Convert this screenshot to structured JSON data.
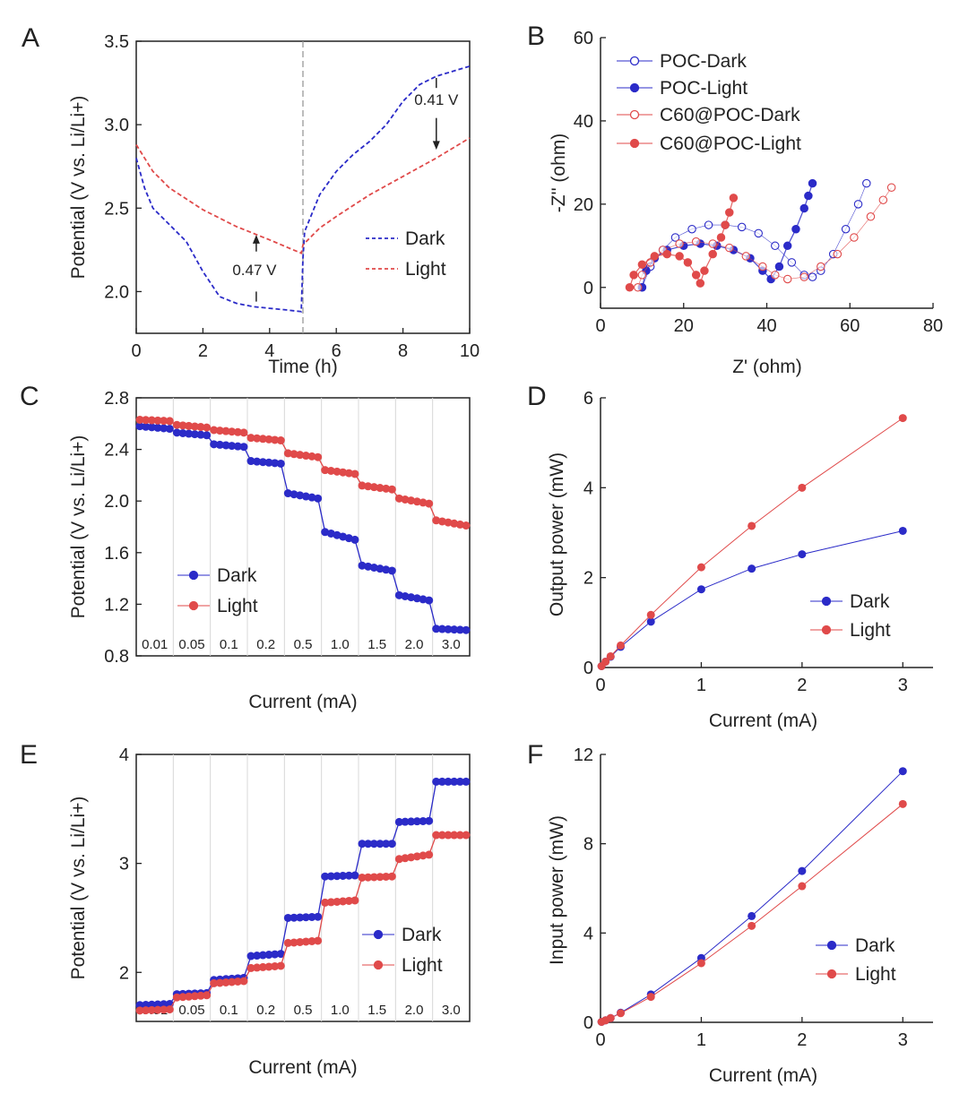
{
  "chart_data": [
    {
      "panel": "A",
      "type": "line",
      "xlabel": "Time (h)",
      "ylabel": "Potential (V vs. Li/Li+)",
      "xlim": [
        0,
        10
      ],
      "ylim": [
        1.75,
        3.5
      ],
      "xticks": [
        0,
        2,
        4,
        6,
        8,
        10
      ],
      "yticks": [
        2.0,
        2.5,
        3.0,
        3.5
      ],
      "ytick_labels": [
        "2.0",
        "2.5",
        "3.0",
        "3.5"
      ],
      "series": [
        {
          "name": "Dark",
          "color": "#2b2bc8",
          "style": "dashed",
          "x": [
            0,
            0.25,
            0.5,
            1,
            1.5,
            2,
            2.5,
            3,
            3.5,
            4,
            4.5,
            4.95,
            5.0,
            5.05,
            5.5,
            6,
            6.5,
            7,
            7.5,
            8,
            8.5,
            9,
            9.5,
            10
          ],
          "y": [
            2.8,
            2.62,
            2.5,
            2.4,
            2.3,
            2.12,
            1.97,
            1.93,
            1.91,
            1.9,
            1.89,
            1.88,
            2.2,
            2.36,
            2.58,
            2.72,
            2.82,
            2.9,
            3.0,
            3.14,
            3.24,
            3.29,
            3.32,
            3.35
          ]
        },
        {
          "name": "Light",
          "color": "#e04a4a",
          "style": "dashed",
          "x": [
            0,
            0.5,
            1,
            2,
            3,
            4,
            4.95,
            5.0,
            5.5,
            6,
            7,
            8,
            9,
            10
          ],
          "y": [
            2.88,
            2.72,
            2.62,
            2.49,
            2.39,
            2.31,
            2.23,
            2.28,
            2.38,
            2.45,
            2.58,
            2.69,
            2.8,
            2.92
          ]
        }
      ],
      "annotations": [
        "0.47 V",
        "0.41 V"
      ]
    },
    {
      "panel": "B",
      "type": "scatter",
      "xlabel": "Z' (ohm)",
      "ylabel": "-Z'' (ohm)",
      "xlim": [
        0,
        80
      ],
      "ylim": [
        -5,
        60
      ],
      "xticks": [
        0,
        20,
        40,
        60,
        80
      ],
      "yticks": [
        0,
        20,
        40,
        60
      ],
      "series": [
        {
          "name": "POC-Dark",
          "color": "#2b2bc8",
          "marker": "open-circle",
          "x": [
            10,
            12,
            15,
            18,
            22,
            26,
            30,
            34,
            38,
            42,
            46,
            49,
            51,
            53,
            56,
            59,
            62,
            64
          ],
          "y": [
            0,
            5,
            9,
            12,
            14,
            15,
            15,
            14.5,
            13,
            10,
            6,
            3,
            2.5,
            4,
            8,
            14,
            20,
            25
          ]
        },
        {
          "name": "POC-Light",
          "color": "#2b2bc8",
          "marker": "filled-circle",
          "x": [
            10,
            11,
            13,
            16,
            20,
            24,
            28,
            32,
            36,
            39,
            41,
            43,
            45,
            47,
            49,
            50,
            51
          ],
          "y": [
            0,
            4,
            7,
            9,
            10,
            10.5,
            10,
            9,
            7,
            4,
            2,
            5,
            10,
            14,
            19,
            22,
            25
          ]
        },
        {
          "name": "C60@POC-Dark",
          "color": "#e04a4a",
          "marker": "open-circle",
          "x": [
            9,
            10,
            12,
            15,
            19,
            23,
            27,
            31,
            35,
            39,
            42,
            45,
            49,
            53,
            57,
            61,
            65,
            68,
            70
          ],
          "y": [
            0,
            3,
            6,
            9,
            10.5,
            11,
            10.5,
            9.5,
            7.5,
            5,
            3,
            2,
            2.5,
            5,
            8,
            12,
            17,
            21,
            24
          ]
        },
        {
          "name": "C60@POC-Light",
          "color": "#e04a4a",
          "marker": "filled-circle",
          "x": [
            7,
            8,
            10,
            13,
            16,
            19,
            21,
            23,
            24,
            25,
            27,
            29,
            30,
            31,
            32
          ],
          "y": [
            0,
            3,
            5.5,
            7.5,
            8,
            7.5,
            6,
            3,
            1,
            4,
            8,
            12,
            15,
            18,
            21.5
          ]
        }
      ]
    },
    {
      "panel": "C",
      "type": "scatter",
      "xlabel": "Current (mA)",
      "ylabel": "Potential (V vs. Li/Li+)",
      "ylim": [
        0.8,
        2.8
      ],
      "yticks": [
        0.8,
        1.2,
        1.6,
        2.0,
        2.4,
        2.8
      ],
      "ytick_labels": [
        "0.8",
        "1.2",
        "1.6",
        "2.0",
        "2.4",
        "2.8"
      ],
      "categories": [
        "0.01",
        "0.05",
        "0.1",
        "0.2",
        "0.5",
        "1.0",
        "1.5",
        "2.0",
        "3.0"
      ],
      "series": [
        {
          "name": "Dark",
          "color": "#2b2bc8",
          "step_start": [
            2.58,
            2.53,
            2.44,
            2.31,
            2.06,
            1.76,
            1.5,
            1.27,
            1.01
          ],
          "step_end": [
            2.56,
            2.51,
            2.42,
            2.29,
            2.02,
            1.7,
            1.46,
            1.23,
            1.0
          ]
        },
        {
          "name": "Light",
          "color": "#e04a4a",
          "step_start": [
            2.63,
            2.59,
            2.55,
            2.49,
            2.37,
            2.24,
            2.12,
            2.02,
            1.85
          ],
          "step_end": [
            2.62,
            2.57,
            2.53,
            2.47,
            2.34,
            2.21,
            2.09,
            1.98,
            1.81
          ]
        }
      ]
    },
    {
      "panel": "D",
      "type": "line",
      "xlabel": "Current (mA)",
      "ylabel": "Output power (mW)",
      "xlim": [
        0,
        3.3
      ],
      "ylim": [
        0,
        6
      ],
      "xticks": [
        0,
        1,
        2,
        3
      ],
      "yticks": [
        0,
        2,
        4,
        6
      ],
      "x": [
        0.01,
        0.05,
        0.1,
        0.2,
        0.5,
        1.0,
        1.5,
        2.0,
        3.0
      ],
      "series": [
        {
          "name": "Dark",
          "color": "#2b2bc8",
          "values": [
            0.03,
            0.13,
            0.24,
            0.46,
            1.02,
            1.74,
            2.2,
            2.52,
            3.04
          ]
        },
        {
          "name": "Light",
          "color": "#e04a4a",
          "values": [
            0.03,
            0.13,
            0.25,
            0.49,
            1.17,
            2.23,
            3.15,
            4.0,
            5.55
          ]
        }
      ]
    },
    {
      "panel": "E",
      "type": "scatter",
      "xlabel": "Current (mA)",
      "ylabel": "Potential (V vs. Li/Li+)",
      "ylim": [
        1.55,
        4.0
      ],
      "yticks": [
        2,
        3,
        4
      ],
      "categories": [
        "0.01",
        "0.05",
        "0.1",
        "0.2",
        "0.5",
        "1.0",
        "1.5",
        "2.0",
        "3.0"
      ],
      "series": [
        {
          "name": "Dark",
          "color": "#2b2bc8",
          "step_start": [
            1.7,
            1.8,
            1.93,
            2.15,
            2.5,
            2.88,
            3.18,
            3.38,
            3.75
          ],
          "step_end": [
            1.71,
            1.81,
            1.95,
            2.17,
            2.51,
            2.89,
            3.18,
            3.39,
            3.75
          ]
        },
        {
          "name": "Light",
          "color": "#e04a4a",
          "step_start": [
            1.65,
            1.77,
            1.9,
            2.04,
            2.27,
            2.64,
            2.87,
            3.04,
            3.26
          ],
          "step_end": [
            1.66,
            1.79,
            1.92,
            2.06,
            2.29,
            2.66,
            2.88,
            3.08,
            3.26
          ]
        }
      ]
    },
    {
      "panel": "F",
      "type": "line",
      "xlabel": "Current (mA)",
      "ylabel": "Input power (mW)",
      "xlim": [
        0,
        3.3
      ],
      "ylim": [
        0,
        12
      ],
      "xticks": [
        0,
        1,
        2,
        3
      ],
      "yticks": [
        0,
        4,
        8,
        12
      ],
      "x": [
        0.01,
        0.05,
        0.1,
        0.2,
        0.5,
        1.0,
        1.5,
        2.0,
        3.0
      ],
      "series": [
        {
          "name": "Dark",
          "color": "#2b2bc8",
          "values": [
            0.02,
            0.09,
            0.19,
            0.43,
            1.25,
            2.88,
            4.76,
            6.78,
            11.25
          ]
        },
        {
          "name": "Light",
          "color": "#e04a4a",
          "values": [
            0.02,
            0.09,
            0.19,
            0.41,
            1.14,
            2.65,
            4.32,
            6.1,
            9.78
          ]
        }
      ]
    }
  ]
}
